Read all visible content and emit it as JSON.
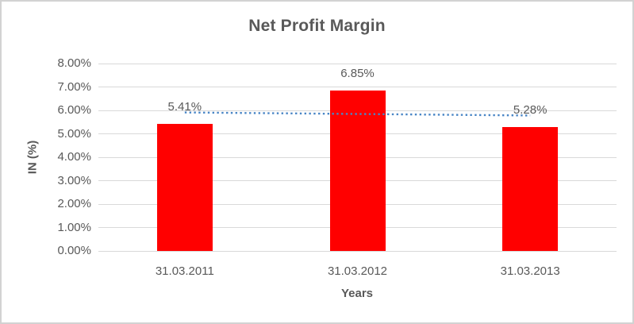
{
  "chart_data": {
    "type": "bar",
    "title": "Net Profit Margin",
    "xlabel": "Years",
    "ylabel": "IN (%)",
    "categories": [
      "31.03.2011",
      "31.03.2012",
      "31.03.2013"
    ],
    "values": [
      5.41,
      6.85,
      5.28
    ],
    "data_labels": [
      "5.41%",
      "6.85%",
      "5.28%"
    ],
    "ytick_labels": [
      "0.00%",
      "1.00%",
      "2.00%",
      "3.00%",
      "4.00%",
      "5.00%",
      "6.00%",
      "7.00%",
      "8.00%"
    ],
    "ytick_step": 1,
    "ylim": [
      0,
      8
    ],
    "grid": true,
    "legend": "none",
    "trendline": {
      "type": "linear",
      "style": "dotted"
    },
    "colors": {
      "bar": "#ff0000",
      "trendline": "#4a86c6",
      "text": "#595959",
      "gridline": "#d9d9d9",
      "axis_line": "#d9d9d9",
      "frame_border": "#d2d2d2",
      "background": "#ffffff"
    }
  }
}
